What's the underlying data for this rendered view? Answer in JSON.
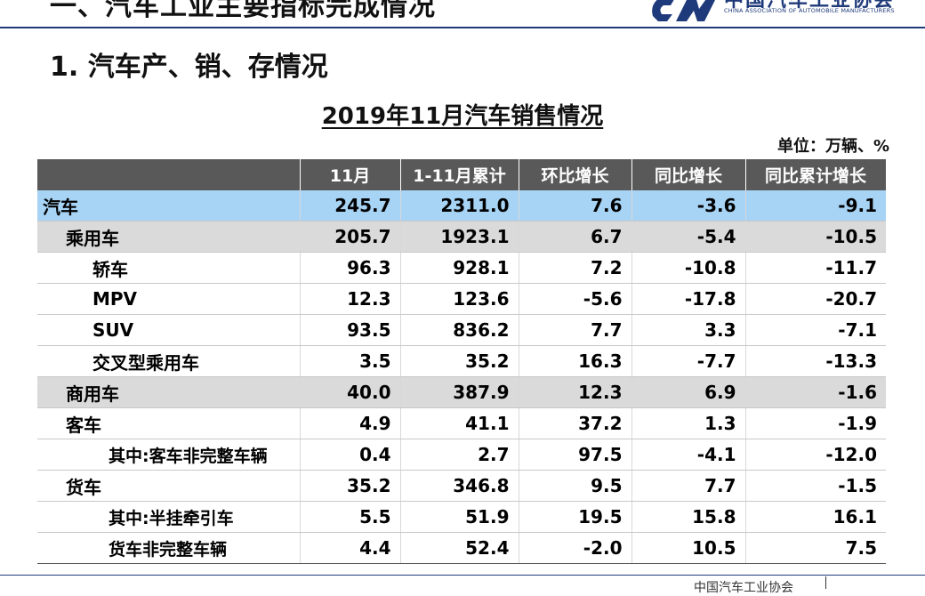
{
  "slide": {
    "top_title": "一、汽车工业主要指标完成情况",
    "logo_cn": "中国汽车工业协会",
    "logo_en": "CHINA ASSOCIATION OF AUTOMOBILE MANUFACTURERS",
    "section_heading": "1. 汽车产、销、存情况",
    "table_title": "2019年11月汽车销售情况",
    "unit_label": "单位：万辆、%",
    "footer_fragment": "中国汽车工业协会",
    "colors": {
      "header_bg": "#595959",
      "highlight_blue": "#a7d3f5",
      "subtotal_gray": "#dadada",
      "brand_navy": "#1f3a7a"
    }
  },
  "table": {
    "headers": [
      "",
      "11月",
      "1-11月累计",
      "环比增长",
      "同比增长",
      "同比累计增长"
    ],
    "rows": [
      {
        "label": "汽车",
        "level": 0,
        "style": "blue",
        "values": [
          "245.7",
          "2311.0",
          "7.6",
          "-3.6",
          "-9.1"
        ]
      },
      {
        "label": "乘用车",
        "level": 1,
        "style": "gray",
        "values": [
          "205.7",
          "1923.1",
          "6.7",
          "-5.4",
          "-10.5"
        ]
      },
      {
        "label": "轿车",
        "level": 2,
        "style": "white",
        "values": [
          "96.3",
          "928.1",
          "7.2",
          "-10.8",
          "-11.7"
        ]
      },
      {
        "label": "MPV",
        "level": 2,
        "style": "white",
        "values": [
          "12.3",
          "123.6",
          "-5.6",
          "-17.8",
          "-20.7"
        ]
      },
      {
        "label": "SUV",
        "level": 2,
        "style": "white",
        "values": [
          "93.5",
          "836.2",
          "7.7",
          "3.3",
          "-7.1"
        ]
      },
      {
        "label": "交叉型乘用车",
        "level": 2,
        "style": "white",
        "values": [
          "3.5",
          "35.2",
          "16.3",
          "-7.7",
          "-13.3"
        ]
      },
      {
        "label": "商用车",
        "level": 1,
        "style": "gray",
        "values": [
          "40.0",
          "387.9",
          "12.3",
          "6.9",
          "-1.6"
        ]
      },
      {
        "label": "客车",
        "level": 1,
        "style": "white",
        "values": [
          "4.9",
          "41.1",
          "37.2",
          "1.3",
          "-1.9"
        ]
      },
      {
        "label": "其中:客车非完整车辆",
        "level": 3,
        "style": "white",
        "values": [
          "0.4",
          "2.7",
          "97.5",
          "-4.1",
          "-12.0"
        ]
      },
      {
        "label": "货车",
        "level": 1,
        "style": "white",
        "values": [
          "35.2",
          "346.8",
          "9.5",
          "7.7",
          "-1.5"
        ]
      },
      {
        "label": "其中:半挂牵引车",
        "level": 3,
        "style": "white",
        "values": [
          "5.5",
          "51.9",
          "19.5",
          "15.8",
          "16.1"
        ]
      },
      {
        "label": "货车非完整车辆",
        "level": 3,
        "style": "white",
        "values": [
          "4.4",
          "52.4",
          "-2.0",
          "10.5",
          "7.5"
        ]
      }
    ]
  }
}
